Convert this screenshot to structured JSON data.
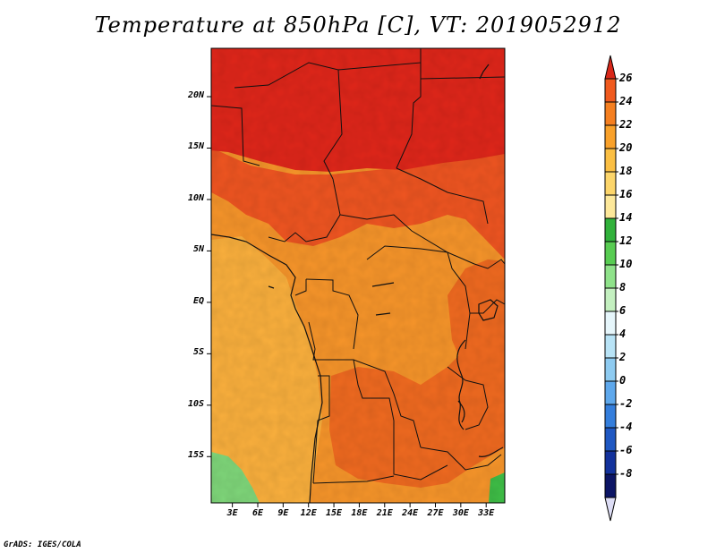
{
  "title": "Temperature at 850hPa [C], VT: 2019052912",
  "credit": "GrADS: IGES/COLA",
  "map": {
    "variable": "Temperature at 850hPa",
    "units": "C",
    "lat_labels": [
      "20N",
      "15N",
      "10N",
      "5N",
      "EQ",
      "5S",
      "10S",
      "15S"
    ],
    "lon_labels": [
      "3E",
      "6E",
      "9E",
      "12E",
      "15E",
      "18E",
      "21E",
      "24E",
      "27E",
      "30E",
      "33E"
    ],
    "lat_range": [
      -19.5,
      24.7
    ],
    "lon_range": [
      0.5,
      35.2
    ]
  },
  "colorbar": {
    "levels": [
      "26",
      "24",
      "22",
      "20",
      "18",
      "16",
      "14",
      "12",
      "10",
      "8",
      "6",
      "4",
      "2",
      "0",
      "-2",
      "-4",
      "-6",
      "-8"
    ],
    "colors": [
      "#e8321b",
      "#f05a1e",
      "#f57f20",
      "#f9a12a",
      "#fbbf43",
      "#fcd56a",
      "#fde89a",
      "#31b13b",
      "#58cc52",
      "#8fe28a",
      "#c4f0c0",
      "#e6f6fb",
      "#b8e3f6",
      "#8ecbf1",
      "#5ea8ec",
      "#347edc",
      "#1f58c2",
      "#13329c",
      "#0c1565"
    ],
    "top_color": "#d9281a",
    "bottom_color": "#ddddf5"
  },
  "regions": {
    "north_color": "#e0261a",
    "sahel_color": "#ef5521",
    "central_color": "#f7952a",
    "west_color": "#fbb03d",
    "southeast_color": "#f06a20",
    "green_sw_color": "#7fd77a",
    "green_se_color": "#3fbf47"
  }
}
